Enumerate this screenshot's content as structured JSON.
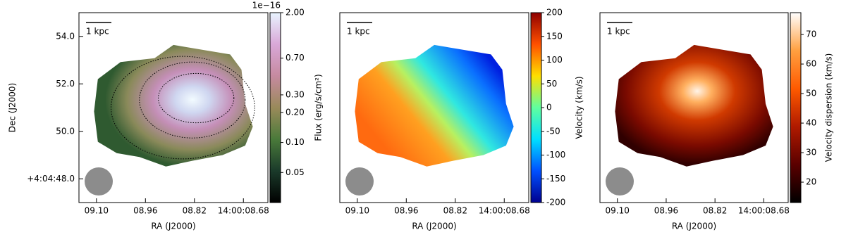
{
  "chart_data": [
    {
      "type": "image",
      "scale_bar": "1 kpc",
      "xlabel": "RA (J2000)",
      "ylabel": "Dec (J2000)",
      "xlim": [
        9.15,
        8.61
      ],
      "xticks": [
        {
          "value": 9.1,
          "label": "09.10"
        },
        {
          "value": 8.96,
          "label": "08.96"
        },
        {
          "value": 8.82,
          "label": "08.82"
        },
        {
          "value": 8.68,
          "label": "14:00:08.68"
        }
      ],
      "ylim": [
        47.0,
        55.0
      ],
      "yticks": [
        {
          "value": 54.0,
          "label": "54.0"
        },
        {
          "value": 52.0,
          "label": "52.0"
        },
        {
          "value": 50.0,
          "label": "50.0"
        },
        {
          "value": 48.0,
          "label": "+4:04:48.0"
        }
      ],
      "colorbar": {
        "label": "Flux (erg/s/cm²)",
        "offset_text": "1e−16",
        "scale": "log",
        "lim": [
          0.025,
          2.0
        ],
        "colors": [
          "#000000",
          "#1a3a2a",
          "#4a7a3a",
          "#9a8a5a",
          "#c68aa0",
          "#d9a8d8",
          "#e8f4ff"
        ],
        "ticks": [
          {
            "value": 2.0,
            "label": "2.00"
          },
          {
            "value": 0.7,
            "label": "0.70"
          },
          {
            "value": 0.3,
            "label": "0.30"
          },
          {
            "value": 0.2,
            "label": "0.20"
          },
          {
            "value": 0.1,
            "label": "0.10"
          },
          {
            "value": 0.05,
            "label": "0.05"
          }
        ]
      }
    },
    {
      "type": "image",
      "scale_bar": "1 kpc",
      "xlabel": "RA (J2000)",
      "xlim": [
        9.15,
        8.61
      ],
      "xticks": [
        {
          "value": 9.1,
          "label": "09.10"
        },
        {
          "value": 8.96,
          "label": "08.96"
        },
        {
          "value": 8.82,
          "label": "08.82"
        },
        {
          "value": 8.68,
          "label": "14:00:08.68"
        }
      ],
      "colorbar": {
        "label": "Velocity (km/s)",
        "scale": "linear",
        "lim": [
          -200,
          200
        ],
        "colors": [
          "#00008f",
          "#0050ff",
          "#00dfff",
          "#60ff9f",
          "#ffdf00",
          "#ff5000",
          "#8f0000"
        ],
        "ticks": [
          200,
          150,
          100,
          50,
          0,
          -50,
          -100,
          -150,
          -200
        ]
      }
    },
    {
      "type": "image",
      "scale_bar": "1 kpc",
      "xlabel": "RA (J2000)",
      "xlim": [
        9.15,
        8.61
      ],
      "xticks": [
        {
          "value": 9.1,
          "label": "09.10"
        },
        {
          "value": 8.96,
          "label": "08.96"
        },
        {
          "value": 8.82,
          "label": "08.82"
        },
        {
          "value": 8.68,
          "label": "14:00:08.68"
        }
      ],
      "colorbar": {
        "label": "Velocity dispersion (km/s)",
        "scale": "linear",
        "lim": [
          13.1,
          77.4
        ],
        "colors": [
          "#000000",
          "#5a0000",
          "#b01a00",
          "#ff5a00",
          "#ffa040",
          "#ffffff"
        ],
        "ticks": [
          70,
          60,
          50,
          40,
          30,
          20
        ]
      }
    }
  ]
}
